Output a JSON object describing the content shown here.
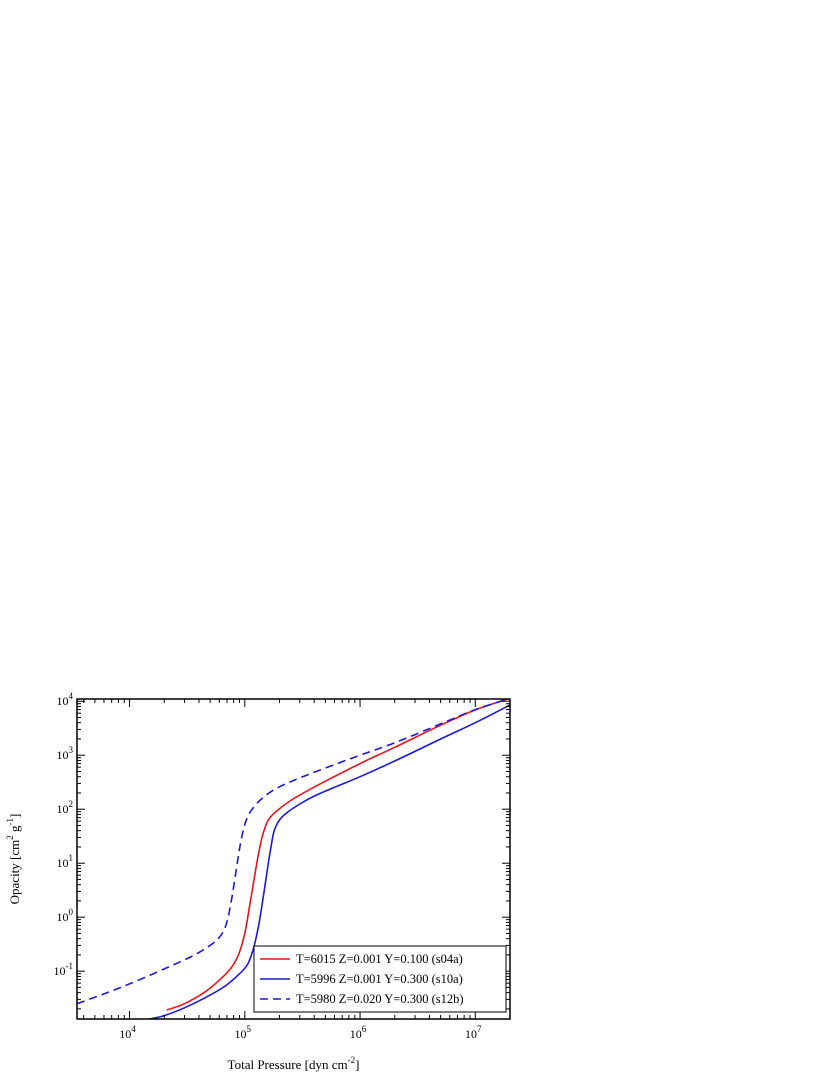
{
  "chart_data": {
    "type": "line",
    "xlabel": "Total Pressure [dyn cm",
    "xlabel_sup": "-2",
    "xlabel_end": "]",
    "ylabel": "Opacity [cm",
    "ylabel_sup1": "2",
    "ylabel_mid": " g",
    "ylabel_sup2": "-1",
    "ylabel_end": "]",
    "x_scale": "log",
    "y_scale": "log",
    "xlim": [
      3500,
      20000000
    ],
    "ylim": [
      0.013,
      11000
    ],
    "grid": false,
    "legend_position": "bottom-right",
    "x_ticks": [
      {
        "value": 10000,
        "base": "10",
        "exp": "4"
      },
      {
        "value": 100000,
        "base": "10",
        "exp": "5"
      },
      {
        "value": 1000000,
        "base": "10",
        "exp": "6"
      },
      {
        "value": 10000000,
        "base": "10",
        "exp": "7"
      }
    ],
    "y_ticks": [
      {
        "value": 0.1,
        "base": "10",
        "exp": "-1"
      },
      {
        "value": 1,
        "base": "10",
        "exp": "0"
      },
      {
        "value": 10,
        "base": "10",
        "exp": "1"
      },
      {
        "value": 100,
        "base": "10",
        "exp": "2"
      },
      {
        "value": 1000,
        "base": "10",
        "exp": "3"
      },
      {
        "value": 10000,
        "base": "10",
        "exp": "4"
      }
    ],
    "series": [
      {
        "name": "T=6015 Z=0.001 Y=0.100 (s04a)",
        "color": "#e8141c",
        "dash": "solid",
        "x": [
          21000,
          30000,
          45000,
          60000,
          75000,
          88000,
          100000,
          110000,
          120000,
          130000,
          140000,
          150000,
          160000,
          175000,
          200000,
          250000,
          350000,
          500000,
          1000000,
          2000000,
          5000000,
          10000000,
          19000000
        ],
        "y": [
          0.019,
          0.025,
          0.041,
          0.068,
          0.11,
          0.2,
          0.5,
          1.6,
          4.8,
          13,
          28,
          46,
          63,
          80,
          102,
          145,
          220,
          330,
          700,
          1400,
          3600,
          6900,
          11000
        ]
      },
      {
        "name": "T=5996 Z=0.001 Y=0.300 (s10a)",
        "color": "#1a1ad6",
        "dash": "solid",
        "x": [
          15000,
          20000,
          30000,
          45000,
          65000,
          85000,
          105000,
          118000,
          130000,
          140000,
          150000,
          160000,
          170000,
          180000,
          200000,
          230000,
          300000,
          400000,
          600000,
          1000000,
          2000000,
          5000000,
          10000000,
          20000000
        ],
        "y": [
          0.013,
          0.015,
          0.021,
          0.032,
          0.05,
          0.08,
          0.13,
          0.25,
          0.6,
          1.5,
          4,
          10,
          22,
          40,
          63,
          85,
          125,
          175,
          255,
          400,
          780,
          2000,
          4000,
          8500
        ]
      },
      {
        "name": "T=5980 Z=0.020 Y=0.300 (s12b)",
        "color": "#1a1ad6",
        "dash": "dashed",
        "x": [
          3500,
          6000,
          10000,
          20000,
          35000,
          50000,
          60000,
          67000,
          72000,
          78000,
          85000,
          92000,
          100000,
          110000,
          120000,
          135000,
          160000,
          200000,
          300000,
          500000,
          1000000,
          2000000,
          5000000,
          10000000,
          18000000
        ],
        "y": [
          0.025,
          0.038,
          0.058,
          0.11,
          0.19,
          0.3,
          0.42,
          0.62,
          1.05,
          2.6,
          8.5,
          24,
          52,
          85,
          110,
          145,
          195,
          260,
          380,
          580,
          1000,
          1700,
          3800,
          7000,
          10500
        ]
      }
    ]
  }
}
